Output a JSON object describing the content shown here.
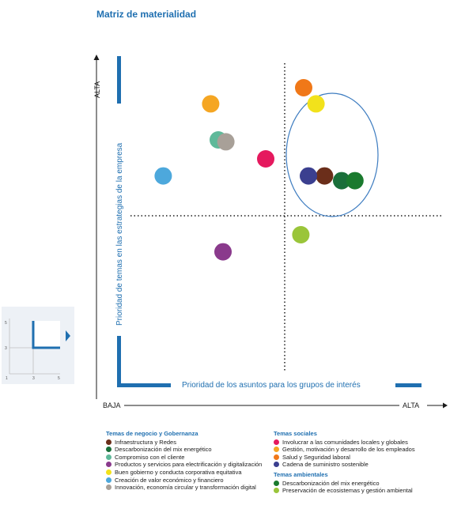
{
  "page": {
    "title": "Matriz de materialidad"
  },
  "axes": {
    "y_label": "Prioridad de temas en las estrategias de la empresa",
    "x_label": "Prioridad de los asuntos para los grupos de interés",
    "y_high": "ALTA",
    "x_low": "BAJA",
    "x_high": "ALTA"
  },
  "colors": {
    "accent": "#1f6fb0",
    "frame": "#1f6fb0",
    "highlight_ellipse": "#3d7cc0"
  },
  "mini_chart": {
    "tick_5_y": "5",
    "tick_3_y": "3",
    "tick_1_x": "1",
    "tick_3_x": "3",
    "tick_5_x": "5",
    "icon": "arrow-right-icon"
  },
  "chart_data": {
    "type": "scatter",
    "title": "Matriz de materialidad",
    "xlabel": "Prioridad de los asuntos para los grupos de interés",
    "ylabel": "Prioridad de temas en las estrategias de la empresa",
    "xlim": [
      1,
      5
    ],
    "ylim": [
      1,
      5
    ],
    "threshold": {
      "x": 3,
      "y": 3
    },
    "grid": false,
    "highlight": "ellipse around top-right cluster",
    "points": [
      {
        "label": "Infraestructura y Redes",
        "color": "#6b2e1a",
        "x": 3.42,
        "y": 3.42
      },
      {
        "label": "Descarbonización del mix energético",
        "color": "#1a6f3a",
        "x": 3.6,
        "y": 3.37
      },
      {
        "label": "Compromiso con el cliente",
        "color": "#5fb99a",
        "x": 2.3,
        "y": 3.8
      },
      {
        "label": "Productos y servicios para electrificación y digitalización",
        "color": "#8a3a8c",
        "x": 2.35,
        "y": 2.62
      },
      {
        "label": "Buen gobierno y conducta corporativa equitativa",
        "color": "#f2e21b",
        "x": 3.33,
        "y": 4.18
      },
      {
        "label": "Creación de valor económico y financiero",
        "color": "#4da8dc",
        "x": 1.72,
        "y": 3.42
      },
      {
        "label": "Innovación, economía circular y transformación digital",
        "color": "#a8a098",
        "x": 2.38,
        "y": 3.78
      },
      {
        "label": "Involucrar a las comunidades locales y globales",
        "color": "#e5195e",
        "x": 2.8,
        "y": 3.6
      },
      {
        "label": "Gestión, motivación y desarrollo de los empleados",
        "color": "#f5a623",
        "x": 2.22,
        "y": 4.18
      },
      {
        "label": "Salud y Seguridad laboral",
        "color": "#f07818",
        "x": 3.2,
        "y": 4.35
      },
      {
        "label": "Cadena de suministro sostenible",
        "color": "#3b3f8f",
        "x": 3.25,
        "y": 3.42
      },
      {
        "label": "Descarbonización del mix energético",
        "color": "#1a7a2e",
        "x": 3.74,
        "y": 3.37
      },
      {
        "label": "Preservación de ecosistemas y gestión ambiental",
        "color": "#9ac53a",
        "x": 3.17,
        "y": 2.8
      }
    ]
  },
  "legend": {
    "groups": [
      {
        "heading": "Temas de negocio y Gobernanza",
        "items": [
          {
            "label": "Infraestructura y Redes",
            "color": "#6b2e1a"
          },
          {
            "label": "Descarbonización del mix energético",
            "color": "#1a6f3a"
          },
          {
            "label": "Compromiso con el cliente",
            "color": "#5fb99a"
          },
          {
            "label": "Productos y servicios para electrificación y digitalización",
            "color": "#8a3a8c"
          },
          {
            "label": "Buen gobierno y conducta corporativa equitativa",
            "color": "#f2e21b"
          },
          {
            "label": "Creación de valor económico y financiero",
            "color": "#4da8dc"
          },
          {
            "label": "Innovación, economía circular y transformación digital",
            "color": "#a8a098"
          }
        ]
      },
      {
        "heading": "Temas sociales",
        "items": [
          {
            "label": "Involucrar a las comunidades locales y globales",
            "color": "#e5195e"
          },
          {
            "label": "Gestión, motivación y desarrollo de los empleados",
            "color": "#f5a623"
          },
          {
            "label": "Salud y Seguridad laboral",
            "color": "#f07818"
          },
          {
            "label": "Cadena de suministro sostenible",
            "color": "#3b3f8f"
          }
        ]
      },
      {
        "heading": "Temas ambientales",
        "items": [
          {
            "label": "Descarbonización del mix energético",
            "color": "#1a7a2e"
          },
          {
            "label": "Preservación de ecosistemas y gestión ambiental",
            "color": "#9ac53a"
          }
        ]
      }
    ]
  }
}
